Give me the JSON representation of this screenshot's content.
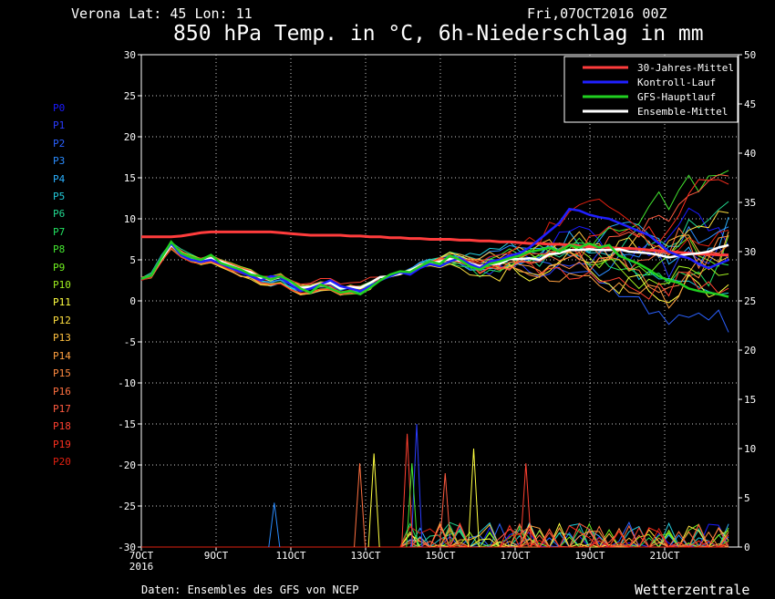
{
  "header": {
    "location": "Verona   Lat: 45 Lon: 11",
    "date": "Fri,07OCT2016 00Z",
    "title": "850 hPa Temp. in °C, 6h-Niederschlag in mm"
  },
  "footer": {
    "credit": "Daten: Ensembles des GFS von NCEP",
    "brand": "Wetterzentrale"
  },
  "members": [
    {
      "label": "P0",
      "color": "#1a1aff"
    },
    {
      "label": "P1",
      "color": "#2a3cff"
    },
    {
      "label": "P2",
      "color": "#2a60ff"
    },
    {
      "label": "P3",
      "color": "#2a8cff"
    },
    {
      "label": "P4",
      "color": "#2ab0ff"
    },
    {
      "label": "P5",
      "color": "#22c8d8"
    },
    {
      "label": "P6",
      "color": "#22d890"
    },
    {
      "label": "P7",
      "color": "#22e060"
    },
    {
      "label": "P8",
      "color": "#44e830"
    },
    {
      "label": "P9",
      "color": "#70f020"
    },
    {
      "label": "P10",
      "color": "#a0f020"
    },
    {
      "label": "P11",
      "color": "#ffff40"
    },
    {
      "label": "P12",
      "color": "#ffe040"
    },
    {
      "label": "P13",
      "color": "#ffc040"
    },
    {
      "label": "P14",
      "color": "#ffa040"
    },
    {
      "label": "P15",
      "color": "#ff8a40"
    },
    {
      "label": "P16",
      "color": "#ff7040"
    },
    {
      "label": "P17",
      "color": "#ff5a40"
    },
    {
      "label": "P18",
      "color": "#ff4030"
    },
    {
      "label": "P19",
      "color": "#ff3020"
    },
    {
      "label": "P20",
      "color": "#e02010"
    }
  ],
  "chart_data": {
    "type": "line",
    "x_labels": [
      "7OCT",
      "9OCT",
      "11OCT",
      "13OCT",
      "15OCT",
      "17OCT",
      "19OCT",
      "21OCT"
    ],
    "x_sub_label": "2016",
    "x_steps_6h": 60,
    "ylim_left": [
      -30,
      30
    ],
    "yticks_left": [
      30,
      25,
      20,
      15,
      10,
      5,
      0,
      -5,
      -10,
      -15,
      -20,
      -25,
      -30
    ],
    "ylim_right": [
      0,
      50
    ],
    "yticks_right": [
      50,
      45,
      40,
      35,
      30,
      25,
      20,
      15,
      10,
      5,
      0
    ],
    "grid": true,
    "legend": [
      {
        "label": "30-Jahres-Mittel",
        "color": "#ff3c3c"
      },
      {
        "label": "Kontroll-Lauf",
        "color": "#2020ff"
      },
      {
        "label": "GFS-Hauptlauf",
        "color": "#20d020"
      },
      {
        "label": "Ensemble-Mittel",
        "color": "#ffffff"
      }
    ],
    "legend_position": "top-right",
    "series": [
      {
        "name": "30-Jahres-Mittel",
        "axis": "left",
        "color": "#ff3c3c",
        "values": [
          7.8,
          7.8,
          7.8,
          7.8,
          7.9,
          8.1,
          8.3,
          8.4,
          8.4,
          8.4,
          8.4,
          8.4,
          8.4,
          8.4,
          8.3,
          8.2,
          8.1,
          8.0,
          8.0,
          8.0,
          8.0,
          7.9,
          7.9,
          7.8,
          7.8,
          7.7,
          7.7,
          7.6,
          7.6,
          7.5,
          7.5,
          7.5,
          7.4,
          7.4,
          7.3,
          7.3,
          7.2,
          7.2,
          7.1,
          7.0,
          7.0,
          6.9,
          6.9,
          6.8,
          6.7,
          6.6,
          6.6,
          6.5,
          6.4,
          6.4,
          6.3,
          6.2,
          6.1,
          6.0,
          5.9,
          5.8,
          5.7,
          5.7,
          5.6,
          5.6
        ]
      },
      {
        "name": "Ensemble-Mittel",
        "axis": "left",
        "color": "#ffffff",
        "values": [
          2.7,
          3.1,
          5.1,
          6.8,
          5.8,
          5.2,
          4.9,
          5.2,
          4.8,
          4.3,
          3.8,
          3.5,
          2.8,
          2.6,
          2.9,
          2.2,
          1.6,
          1.7,
          2.1,
          2.2,
          1.5,
          1.7,
          1.6,
          2.2,
          2.9,
          3.0,
          3.3,
          3.7,
          4.3,
          4.6,
          4.8,
          5.1,
          4.9,
          4.6,
          4.2,
          4.5,
          4.5,
          5.1,
          5.1,
          5.2,
          5.0,
          5.7,
          5.8,
          6.2,
          6.2,
          6.3,
          6.2,
          6.2,
          6.3,
          6.0,
          5.9,
          5.8,
          5.6,
          5.3,
          5.5,
          5.7,
          5.8,
          6.0,
          6.5,
          6.8
        ]
      },
      {
        "name": "Kontroll-Lauf",
        "axis": "left",
        "color": "#2020ff",
        "values": [
          2.7,
          3.1,
          5.3,
          7.0,
          5.6,
          5.0,
          4.8,
          5.0,
          4.5,
          4.0,
          3.5,
          3.0,
          2.5,
          3.0,
          2.9,
          2.0,
          1.2,
          1.5,
          2.0,
          2.5,
          1.8,
          1.5,
          1.2,
          1.8,
          2.5,
          3.0,
          3.5,
          3.2,
          4.0,
          4.5,
          4.2,
          4.8,
          5.2,
          4.5,
          4.0,
          4.8,
          5.0,
          5.5,
          5.8,
          6.5,
          7.5,
          8.5,
          9.5,
          11.2,
          11.0,
          10.5,
          10.2,
          10.0,
          9.5,
          9.0,
          8.5,
          8.0,
          7.0,
          6.0,
          5.5,
          5.2,
          4.5,
          4.0,
          4.5,
          5.0
        ]
      },
      {
        "name": "GFS-Hauptlauf",
        "axis": "left",
        "color": "#20d020",
        "values": [
          2.7,
          3.1,
          5.2,
          7.2,
          5.8,
          5.3,
          5.0,
          5.6,
          4.6,
          4.2,
          3.8,
          3.2,
          3.0,
          2.6,
          3.0,
          2.4,
          1.5,
          1.0,
          2.0,
          1.5,
          1.0,
          1.2,
          0.8,
          1.6,
          2.5,
          3.2,
          3.6,
          3.5,
          4.2,
          4.8,
          4.5,
          5.5,
          5.0,
          4.2,
          3.8,
          4.5,
          4.8,
          5.2,
          5.5,
          6.0,
          6.2,
          6.5,
          6.0,
          6.8,
          6.5,
          7.0,
          6.5,
          6.8,
          5.5,
          5.0,
          4.5,
          3.8,
          3.0,
          2.5,
          2.2,
          1.5,
          1.2,
          1.0,
          0.8,
          0.5
        ]
      }
    ],
    "precipitation_peaks_mm": [
      {
        "x": 58,
        "value": 12.5,
        "color": "#2a3cff"
      },
      {
        "x": 56,
        "value": 11.5,
        "color": "#ff4030"
      },
      {
        "x": 70,
        "value": 10.0,
        "color": "#ffff40"
      },
      {
        "x": 49,
        "value": 9.5,
        "color": "#ffff40"
      },
      {
        "x": 57,
        "value": 8.5,
        "color": "#44e830"
      },
      {
        "x": 46,
        "value": 8.5,
        "color": "#ff7040"
      },
      {
        "x": 64,
        "value": 7.5,
        "color": "#ff5a40"
      },
      {
        "x": 81,
        "value": 8.5,
        "color": "#ff4030"
      },
      {
        "x": 28,
        "value": 4.5,
        "color": "#2a8cff"
      }
    ]
  }
}
